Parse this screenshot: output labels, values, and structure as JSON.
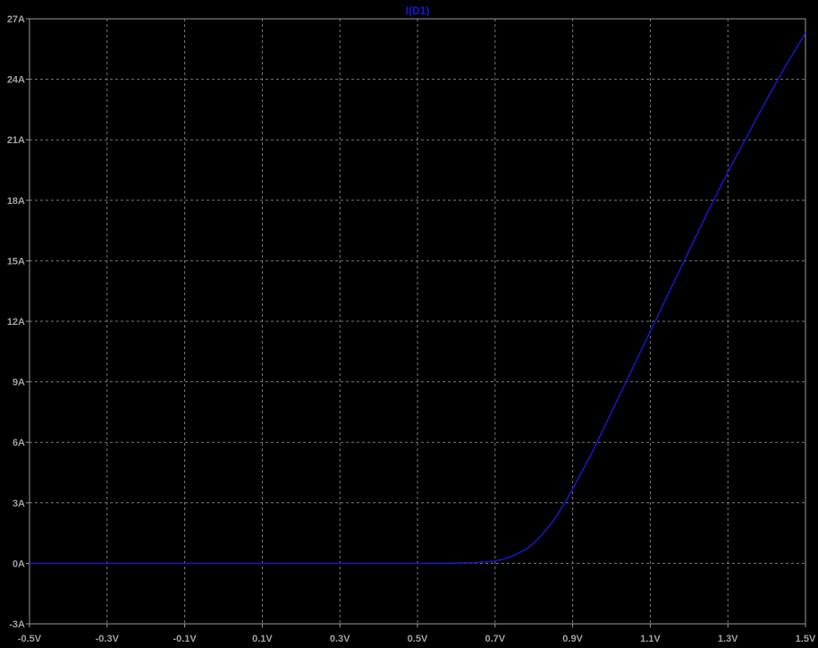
{
  "chart_data": {
    "type": "line",
    "title": "I(D1)",
    "xlabel": "",
    "ylabel": "",
    "xlim": [
      -0.5,
      1.5
    ],
    "ylim": [
      -3,
      27
    ],
    "grid": true,
    "x_ticks": [
      -0.5,
      -0.3,
      -0.1,
      0.1,
      0.3,
      0.5,
      0.7,
      0.9,
      1.1,
      1.3,
      1.5
    ],
    "x_tick_labels": [
      "-0.5V",
      "-0.3V",
      "-0.1V",
      "0.1V",
      "0.3V",
      "0.5V",
      "0.7V",
      "0.9V",
      "1.1V",
      "1.3V",
      "1.5V"
    ],
    "y_ticks": [
      -3,
      0,
      3,
      6,
      9,
      12,
      15,
      18,
      21,
      24,
      27
    ],
    "y_tick_labels": [
      "-3A",
      "0A",
      "3A",
      "6A",
      "9A",
      "12A",
      "15A",
      "18A",
      "21A",
      "24A",
      "27A"
    ],
    "series": [
      {
        "name": "I(D1)",
        "color": "#1818c8",
        "x": [
          -0.5,
          -0.3,
          -0.1,
          0.1,
          0.3,
          0.5,
          0.6,
          0.65,
          0.7,
          0.72,
          0.75,
          0.78,
          0.8,
          0.82,
          0.85,
          0.88,
          0.9,
          0.95,
          1.0,
          1.05,
          1.1,
          1.15,
          1.2,
          1.25,
          1.3,
          1.35,
          1.4,
          1.45,
          1.5
        ],
        "y": [
          0,
          0,
          0,
          0,
          0,
          0,
          0.01,
          0.03,
          0.12,
          0.2,
          0.4,
          0.7,
          1.0,
          1.4,
          2.1,
          3.0,
          3.7,
          5.5,
          7.5,
          9.5,
          11.5,
          13.5,
          15.5,
          17.5,
          19.4,
          21.2,
          23.0,
          24.7,
          26.3
        ]
      }
    ]
  },
  "colors": {
    "background": "#000000",
    "grid": "#7a7a7a",
    "frame": "#9a9a9a",
    "tick_text": "#a0a0a0",
    "title_text": "#1818e0"
  }
}
